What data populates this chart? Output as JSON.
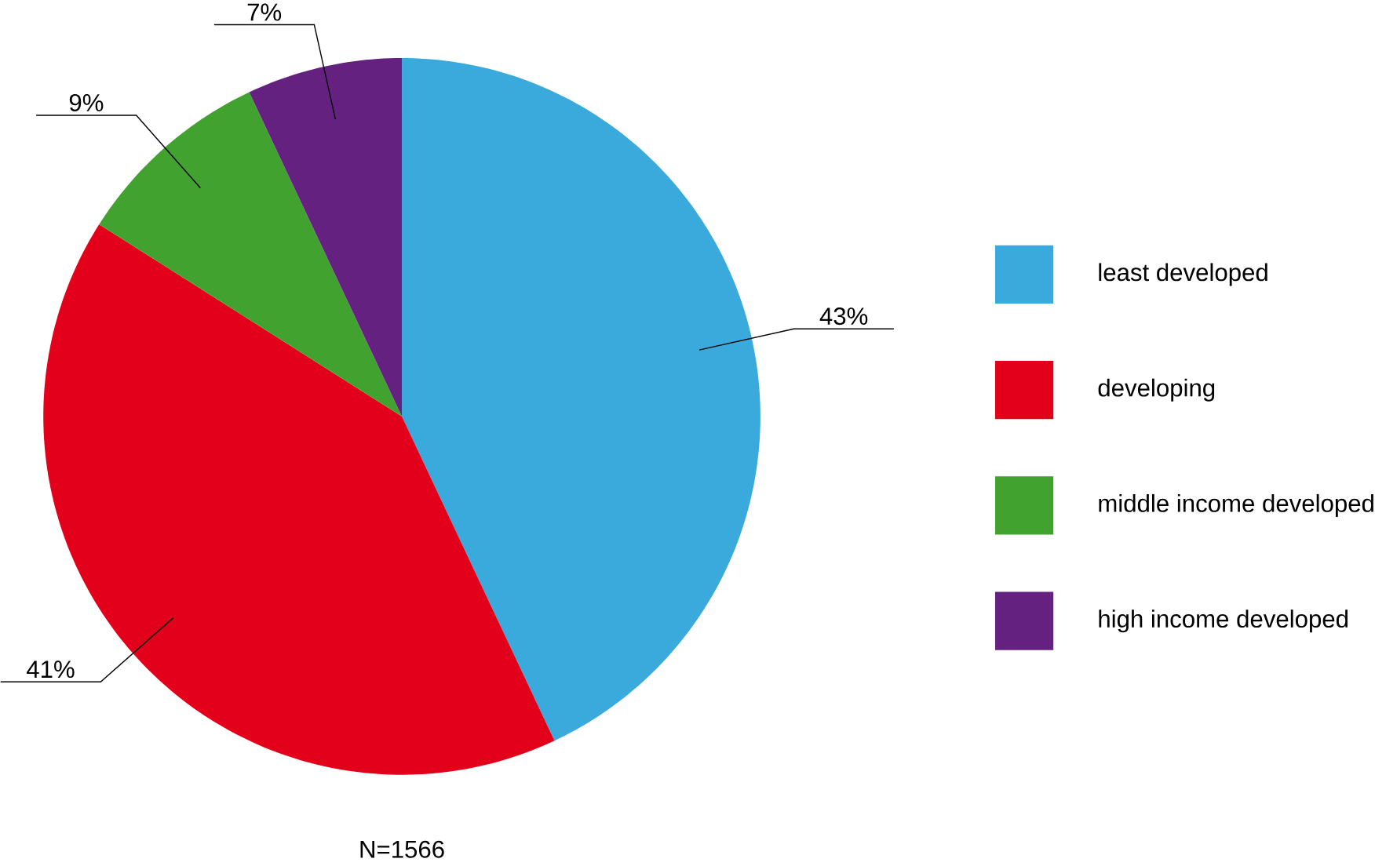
{
  "chart_data": {
    "type": "pie",
    "categories": [
      "least developed",
      "developing",
      "middle income developed",
      "high income developed"
    ],
    "values": [
      43,
      41,
      9,
      7
    ],
    "colors": [
      "#3aa9dc",
      "#e2001a",
      "#42a22f",
      "#65217f"
    ],
    "value_labels": [
      "43%",
      "41%",
      "9%",
      "7%"
    ],
    "legend": "right",
    "annotations": [
      "N=1566"
    ]
  }
}
